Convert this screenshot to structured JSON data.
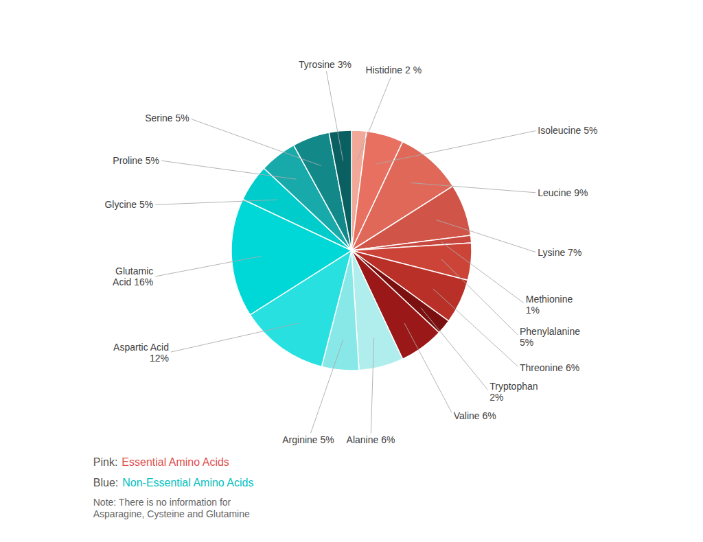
{
  "chart_data": {
    "type": "pie",
    "categories": [
      "Histidine 2 %",
      "Isoleucine 5%",
      "Leucine 9%",
      "Lysine 7%",
      "Methionine\n1%",
      "Phenylalanine\n5%",
      "Threonine 6%",
      "Tryptophan\n2%",
      "Valine 6%",
      "Alanine 6%",
      "Arginine 5%",
      "Aspartic Acid\n12%",
      "Glutamic\nAcid 16%",
      "Glycine 5%",
      "Proline 5%",
      "Serine 5%",
      "Tyrosine 3%"
    ],
    "values": [
      2,
      5,
      9,
      7,
      1,
      5,
      6,
      2,
      6,
      6,
      5,
      12,
      16,
      5,
      5,
      5,
      3
    ],
    "colors": [
      "#F2A898",
      "#E87060",
      "#E06858",
      "#D05548",
      "#C84840",
      "#CC4438",
      "#B83028",
      "#7A1010",
      "#9A1818",
      "#B0EEEE",
      "#88E8E8",
      "#28E0E0",
      "#00D8D8",
      "#00CCCC",
      "#18AAAA",
      "#128888",
      "#0A6060"
    ],
    "annotations": [
      {
        "label": "Pink:",
        "text": "Essential Amino Acids",
        "color": "#E05050"
      },
      {
        "label": "Blue:",
        "text": "Non-Essential Amino Acids",
        "color": "#00C0C0"
      },
      {
        "text": "Note: There is no information for\nAsparagine, Cysteine and Glutamine"
      }
    ]
  }
}
